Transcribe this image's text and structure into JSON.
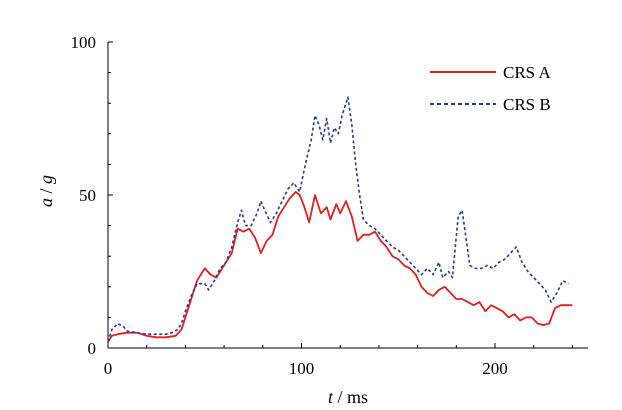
{
  "chart_data": {
    "type": "line",
    "xlabel": {
      "var": "t",
      "sep": " / ",
      "unit": "ms"
    },
    "ylabel": {
      "var": "a",
      "sep": " / ",
      "unit": "g"
    },
    "xlim": [
      0,
      250
    ],
    "ylim": [
      0,
      100
    ],
    "xticks": [
      "0",
      "100",
      "200"
    ],
    "yticks": [
      "0",
      "50",
      "100"
    ],
    "grid": false,
    "legend_position": "top-right",
    "series": [
      {
        "name": "CRS A",
        "color": "#e02020",
        "style": "solid",
        "points": [
          [
            0,
            2
          ],
          [
            2,
            4
          ],
          [
            5,
            4.5
          ],
          [
            10,
            5
          ],
          [
            15,
            5
          ],
          [
            20,
            4
          ],
          [
            25,
            3.5
          ],
          [
            30,
            3.5
          ],
          [
            35,
            4
          ],
          [
            38,
            6
          ],
          [
            40,
            10
          ],
          [
            43,
            16
          ],
          [
            46,
            22
          ],
          [
            50,
            26
          ],
          [
            53,
            24
          ],
          [
            56,
            23
          ],
          [
            58,
            25
          ],
          [
            61,
            28
          ],
          [
            64,
            31
          ],
          [
            67,
            39
          ],
          [
            70,
            38
          ],
          [
            73,
            39
          ],
          [
            76,
            36
          ],
          [
            79,
            31
          ],
          [
            82,
            35
          ],
          [
            85,
            37
          ],
          [
            88,
            43
          ],
          [
            91,
            46
          ],
          [
            94,
            49
          ],
          [
            97,
            51
          ],
          [
            99,
            50
          ],
          [
            101,
            47
          ],
          [
            104,
            41
          ],
          [
            107,
            50
          ],
          [
            110,
            44
          ],
          [
            113,
            46
          ],
          [
            115,
            42
          ],
          [
            118,
            47
          ],
          [
            120,
            44
          ],
          [
            123,
            48
          ],
          [
            126,
            43
          ],
          [
            129,
            35
          ],
          [
            132,
            37
          ],
          [
            135,
            37
          ],
          [
            138,
            38
          ],
          [
            141,
            35
          ],
          [
            144,
            33
          ],
          [
            147,
            30
          ],
          [
            150,
            29
          ],
          [
            153,
            27
          ],
          [
            156,
            26
          ],
          [
            159,
            24
          ],
          [
            162,
            20
          ],
          [
            165,
            18
          ],
          [
            168,
            17
          ],
          [
            171,
            19
          ],
          [
            174,
            20
          ],
          [
            177,
            18
          ],
          [
            180,
            16
          ],
          [
            183,
            16
          ],
          [
            186,
            15
          ],
          [
            189,
            14
          ],
          [
            192,
            15
          ],
          [
            195,
            12
          ],
          [
            198,
            14
          ],
          [
            201,
            13
          ],
          [
            204,
            12
          ],
          [
            207,
            10
          ],
          [
            210,
            11
          ],
          [
            213,
            9
          ],
          [
            216,
            10
          ],
          [
            219,
            10
          ],
          [
            222,
            8
          ],
          [
            225,
            7.5
          ],
          [
            228,
            8
          ],
          [
            231,
            13
          ],
          [
            234,
            14
          ],
          [
            237,
            14
          ],
          [
            240,
            14
          ]
        ]
      },
      {
        "name": "CRS B",
        "color": "#2a3a8c",
        "style": "dashed",
        "points": [
          [
            0,
            2
          ],
          [
            2,
            6
          ],
          [
            5,
            8
          ],
          [
            8,
            7
          ],
          [
            10,
            5.5
          ],
          [
            15,
            5
          ],
          [
            20,
            4.5
          ],
          [
            25,
            4.5
          ],
          [
            30,
            4.5
          ],
          [
            33,
            5
          ],
          [
            36,
            6
          ],
          [
            38,
            8
          ],
          [
            40,
            12
          ],
          [
            43,
            17
          ],
          [
            46,
            21
          ],
          [
            50,
            21
          ],
          [
            52,
            19
          ],
          [
            55,
            22
          ],
          [
            58,
            26
          ],
          [
            61,
            28
          ],
          [
            64,
            33
          ],
          [
            67,
            41
          ],
          [
            69,
            45
          ],
          [
            71,
            40
          ],
          [
            74,
            40
          ],
          [
            77,
            44
          ],
          [
            79,
            48
          ],
          [
            81,
            45
          ],
          [
            84,
            41
          ],
          [
            87,
            44
          ],
          [
            90,
            48
          ],
          [
            93,
            52
          ],
          [
            96,
            54
          ],
          [
            99,
            51
          ],
          [
            102,
            60
          ],
          [
            105,
            68
          ],
          [
            107,
            76
          ],
          [
            109,
            73
          ],
          [
            111,
            68
          ],
          [
            113,
            75
          ],
          [
            115,
            67
          ],
          [
            117,
            72
          ],
          [
            119,
            70
          ],
          [
            121,
            76
          ],
          [
            124,
            82
          ],
          [
            126,
            73
          ],
          [
            128,
            60
          ],
          [
            130,
            50
          ],
          [
            132,
            42
          ],
          [
            135,
            40
          ],
          [
            138,
            39
          ],
          [
            141,
            37
          ],
          [
            144,
            35
          ],
          [
            147,
            33
          ],
          [
            150,
            32
          ],
          [
            153,
            30
          ],
          [
            156,
            28
          ],
          [
            159,
            26
          ],
          [
            162,
            24
          ],
          [
            165,
            26
          ],
          [
            168,
            24
          ],
          [
            171,
            28
          ],
          [
            173,
            23
          ],
          [
            176,
            25
          ],
          [
            178,
            23
          ],
          [
            181,
            43
          ],
          [
            183,
            45
          ],
          [
            185,
            36
          ],
          [
            187,
            27
          ],
          [
            190,
            26
          ],
          [
            193,
            26
          ],
          [
            196,
            27
          ],
          [
            199,
            26
          ],
          [
            202,
            28
          ],
          [
            205,
            29
          ],
          [
            208,
            31
          ],
          [
            211,
            33
          ],
          [
            214,
            28
          ],
          [
            217,
            25
          ],
          [
            220,
            23
          ],
          [
            223,
            21
          ],
          [
            226,
            19
          ],
          [
            229,
            15
          ],
          [
            232,
            18
          ],
          [
            235,
            22
          ],
          [
            238,
            21
          ]
        ]
      }
    ]
  }
}
